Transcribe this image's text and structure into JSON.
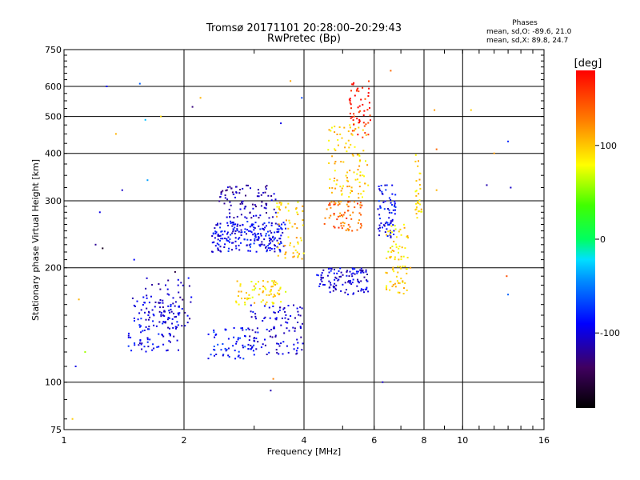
{
  "chart_data": {
    "type": "scatter",
    "title": "Tromsø 20171101 20:28:00–20:29:43",
    "subtitle": "RwPretec (Bp)",
    "xlabel": "Frequency [MHz]",
    "ylabel": "Stationary phase Virtual Height [km]",
    "x_scale": "log",
    "y_scale": "log",
    "xlim": [
      1,
      16
    ],
    "ylim": [
      75,
      750
    ],
    "x_ticks": [
      1,
      2,
      4,
      6,
      8,
      10,
      16
    ],
    "y_ticks": [
      75,
      100,
      200,
      300,
      400,
      500,
      600,
      750
    ],
    "x_grid": [
      2,
      4,
      6,
      8,
      10
    ],
    "y_grid": [
      100,
      200,
      300,
      400,
      500,
      600
    ],
    "phase_stats": {
      "title": "Phases",
      "line_o": "mean, sd,O: -89.6, 21.0",
      "line_x": "mean, sd,X:  89.8, 24.7"
    },
    "colorbar": {
      "label": "[deg]",
      "ticks": [
        100,
        0,
        -100
      ],
      "range": [
        -180,
        180
      ]
    },
    "clusters": [
      {
        "x": [
          1.45,
          1.95
        ],
        "y": [
          120,
          170
        ],
        "phase": -100,
        "n": 120
      },
      {
        "x": [
          1.6,
          2.1
        ],
        "y": [
          140,
          190
        ],
        "phase": -110,
        "n": 50
      },
      {
        "x": [
          2.35,
          3.6
        ],
        "y": [
          220,
          265
        ],
        "phase": -95,
        "n": 220
      },
      {
        "x": [
          2.45,
          3.4
        ],
        "y": [
          270,
          330
        ],
        "phase": -120,
        "n": 90
      },
      {
        "x": [
          2.3,
          3.0
        ],
        "y": [
          115,
          140
        ],
        "phase": -85,
        "n": 60
      },
      {
        "x": [
          2.9,
          4.0
        ],
        "y": [
          118,
          160
        ],
        "phase": -105,
        "n": 110
      },
      {
        "x": [
          2.7,
          3.6
        ],
        "y": [
          160,
          185
        ],
        "phase": 95,
        "n": 70
      },
      {
        "x": [
          3.4,
          4.0
        ],
        "y": [
          210,
          300
        ],
        "phase": 100,
        "n": 60
      },
      {
        "x": [
          4.3,
          5.8
        ],
        "y": [
          170,
          200
        ],
        "phase": -105,
        "n": 110
      },
      {
        "x": [
          4.5,
          5.6
        ],
        "y": [
          250,
          300
        ],
        "phase": 140,
        "n": 70
      },
      {
        "x": [
          4.6,
          5.8
        ],
        "y": [
          300,
          480
        ],
        "phase": 100,
        "n": 100
      },
      {
        "x": [
          5.2,
          5.9
        ],
        "y": [
          440,
          620
        ],
        "phase": 170,
        "n": 55
      },
      {
        "x": [
          6.1,
          6.8
        ],
        "y": [
          240,
          330
        ],
        "phase": -95,
        "n": 70
      },
      {
        "x": [
          6.4,
          7.3
        ],
        "y": [
          170,
          260
        ],
        "phase": 95,
        "n": 80
      },
      {
        "x": [
          7.6,
          7.9
        ],
        "y": [
          270,
          400
        ],
        "phase": 100,
        "n": 30
      }
    ],
    "outliers": [
      {
        "x": 1.05,
        "y": 80,
        "phase": 100
      },
      {
        "x": 1.07,
        "y": 110,
        "phase": -100
      },
      {
        "x": 1.13,
        "y": 120,
        "phase": 60
      },
      {
        "x": 1.09,
        "y": 165,
        "phase": 110
      },
      {
        "x": 1.2,
        "y": 230,
        "phase": -130
      },
      {
        "x": 1.23,
        "y": 280,
        "phase": -100
      },
      {
        "x": 1.28,
        "y": 600,
        "phase": -90
      },
      {
        "x": 1.35,
        "y": 450,
        "phase": 110
      },
      {
        "x": 1.4,
        "y": 320,
        "phase": -110
      },
      {
        "x": 1.55,
        "y": 610,
        "phase": -60
      },
      {
        "x": 1.6,
        "y": 490,
        "phase": -30
      },
      {
        "x": 1.62,
        "y": 340,
        "phase": -40
      },
      {
        "x": 1.75,
        "y": 500,
        "phase": 95
      },
      {
        "x": 1.9,
        "y": 195,
        "phase": -160
      },
      {
        "x": 2.1,
        "y": 530,
        "phase": -140
      },
      {
        "x": 2.2,
        "y": 560,
        "phase": 110
      },
      {
        "x": 3.3,
        "y": 95,
        "phase": -120
      },
      {
        "x": 3.35,
        "y": 102,
        "phase": 130
      },
      {
        "x": 3.7,
        "y": 620,
        "phase": 115
      },
      {
        "x": 3.95,
        "y": 560,
        "phase": -70
      },
      {
        "x": 3.5,
        "y": 480,
        "phase": -100
      },
      {
        "x": 6.3,
        "y": 100,
        "phase": -110
      },
      {
        "x": 6.6,
        "y": 660,
        "phase": 140
      },
      {
        "x": 8.5,
        "y": 520,
        "phase": 120
      },
      {
        "x": 8.6,
        "y": 410,
        "phase": 140
      },
      {
        "x": 8.6,
        "y": 320,
        "phase": 110
      },
      {
        "x": 10.5,
        "y": 520,
        "phase": 100
      },
      {
        "x": 12.0,
        "y": 400,
        "phase": 120
      },
      {
        "x": 13.0,
        "y": 430,
        "phase": -80
      },
      {
        "x": 13.2,
        "y": 325,
        "phase": -110
      },
      {
        "x": 12.9,
        "y": 190,
        "phase": 150
      },
      {
        "x": 13.0,
        "y": 170,
        "phase": -60
      },
      {
        "x": 11.5,
        "y": 330,
        "phase": -120
      },
      {
        "x": 7.4,
        "y": 200,
        "phase": 120
      },
      {
        "x": 1.25,
        "y": 225,
        "phase": -170
      },
      {
        "x": 1.5,
        "y": 210,
        "phase": -90
      }
    ]
  }
}
